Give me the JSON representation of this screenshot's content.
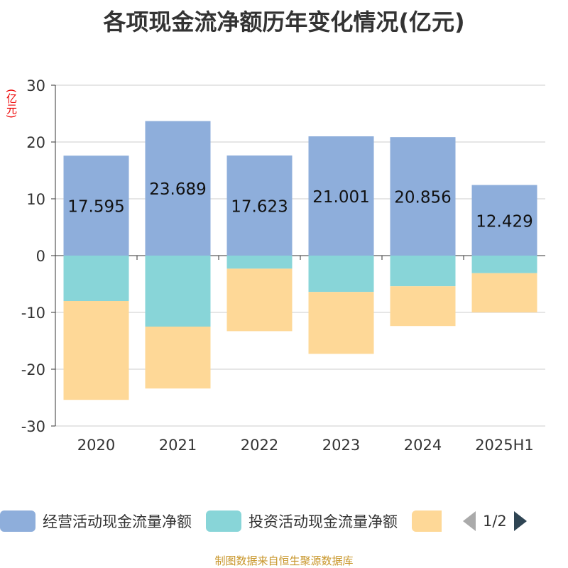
{
  "chart_data": {
    "type": "bar",
    "stacked": true,
    "title": "各项现金流净额历年变化情况(亿元)",
    "ylabel": "(亿元)",
    "categories": [
      "2020",
      "2021",
      "2022",
      "2023",
      "2024",
      "2025H1"
    ],
    "ylim": [
      -30,
      30
    ],
    "yticks": [
      30,
      20,
      10,
      0,
      -10,
      -20,
      -30
    ],
    "grid": true,
    "legend_position": "bottom",
    "series": [
      {
        "name": "经营活动现金流量净额",
        "color": "#8eaedb",
        "values": [
          17.595,
          23.689,
          17.623,
          21.001,
          20.856,
          12.429
        ],
        "labels": [
          "17.595",
          "23.689",
          "17.623",
          "21.001",
          "20.856",
          "12.429"
        ]
      },
      {
        "name": "投资活动现金流量净额",
        "color": "#88d5d8",
        "values": [
          -8.0,
          -12.5,
          -2.3,
          -6.4,
          -5.4,
          -3.1
        ]
      },
      {
        "color": "#fed897",
        "values": [
          -17.4,
          -10.9,
          -11.0,
          -10.9,
          -7.0,
          -6.9
        ]
      }
    ]
  },
  "legend": {
    "page": "1/2"
  },
  "source": "制图数据来自恒生聚源数据库"
}
